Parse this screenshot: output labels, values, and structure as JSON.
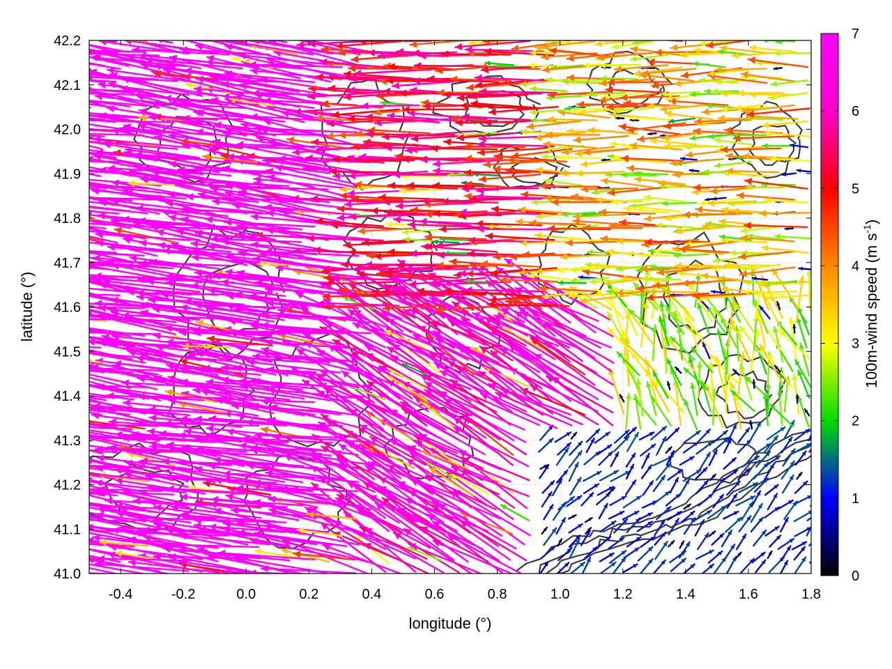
{
  "chart_data": {
    "type": "vector_field",
    "title": "",
    "xlabel": "longitude (°)",
    "ylabel": "latitude (°)",
    "xlim": [
      -0.5,
      1.8
    ],
    "ylim": [
      41.0,
      42.2
    ],
    "x_ticks": [
      "-0.4",
      "-0.2",
      "0.0",
      "0.2",
      "0.4",
      "0.6",
      "0.8",
      "1.0",
      "1.2",
      "1.4",
      "1.6",
      "1.8"
    ],
    "x_tick_values": [
      -0.4,
      -0.2,
      0.0,
      0.2,
      0.4,
      0.6,
      0.8,
      1.0,
      1.2,
      1.4,
      1.6,
      1.8
    ],
    "y_ticks": [
      "41.0",
      "41.1",
      "41.2",
      "41.3",
      "41.4",
      "41.5",
      "41.6",
      "41.7",
      "41.8",
      "41.9",
      "42.0",
      "42.1",
      "42.2"
    ],
    "y_tick_values": [
      41.0,
      41.1,
      41.2,
      41.3,
      41.4,
      41.5,
      41.6,
      41.7,
      41.8,
      41.9,
      42.0,
      42.1,
      42.2
    ],
    "grid": true,
    "colorbar": {
      "label_main": "100m-wind speed (m s",
      "label_sup": "-1",
      "label_end": ")",
      "range": [
        0,
        7
      ],
      "ticks": [
        "0",
        "1",
        "2",
        "3",
        "4",
        "5",
        "6",
        "7"
      ],
      "tick_values": [
        0,
        1,
        2,
        3,
        4,
        5,
        6,
        7
      ],
      "colors": [
        "#000000",
        "#0000ff",
        "#00dd00",
        "#ffff00",
        "#ff8800",
        "#ff0000",
        "#ff00ff"
      ]
    },
    "wind_regions": [
      {
        "region": "west",
        "lon": [
          -0.5,
          0.4
        ],
        "lat": [
          41.0,
          42.2
        ],
        "speed_m_s": 7.0,
        "direction": "from east-south-east (vectors point west / west-north-west)"
      },
      {
        "region": "north-central",
        "lon": [
          0.4,
          1.0
        ],
        "lat": [
          41.6,
          42.2
        ],
        "speed_m_s": 5.0,
        "direction": "vectors point west"
      },
      {
        "region": "north-east",
        "lon": [
          1.0,
          1.8
        ],
        "lat": [
          41.6,
          42.2
        ],
        "speed_m_s": 3.0,
        "direction": "vectors point west"
      },
      {
        "region": "central",
        "lon": [
          0.4,
          1.2
        ],
        "lat": [
          41.2,
          41.6
        ],
        "speed_m_s": 6.5,
        "direction": "vectors point north-west"
      },
      {
        "region": "east",
        "lon": [
          1.2,
          1.8
        ],
        "lat": [
          41.3,
          41.6
        ],
        "speed_m_s": 2.5,
        "direction": "vectors point north / north-west"
      },
      {
        "region": "south-east sea",
        "lon": [
          0.9,
          1.8
        ],
        "lat": [
          41.0,
          41.3
        ],
        "speed_m_s": 1.0,
        "direction": "vectors point north-east"
      }
    ],
    "contours": "terrain elevation contour lines (dark grey), unlabeled"
  }
}
